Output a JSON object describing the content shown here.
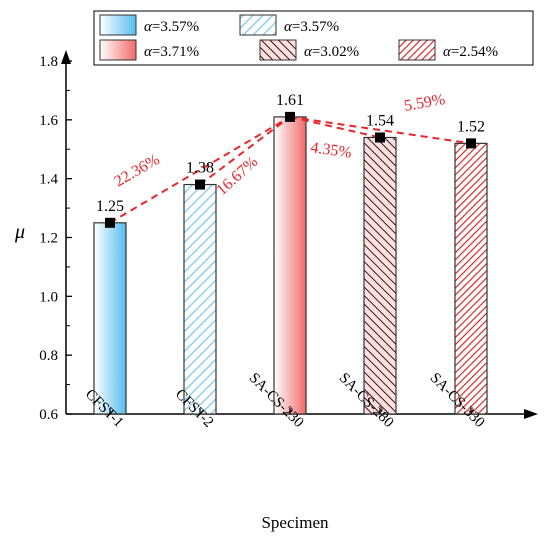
{
  "chart_data": {
    "type": "bar",
    "xlabel": "Specimen",
    "ylabel": "μ",
    "ylim": [
      0.6,
      1.8
    ],
    "yticks": [
      "0.6",
      "0.8",
      "1.0",
      "1.2",
      "1.4",
      "1.6",
      "1.8"
    ],
    "categories": [
      "CFST-1",
      "CFST-2",
      "SA-CS-230",
      "SA-CS-280",
      "SA-CS-330"
    ],
    "values": [
      1.25,
      1.38,
      1.61,
      1.54,
      1.52
    ],
    "value_labels": [
      "1.25",
      "1.38",
      "1.61",
      "1.54",
      "1.52"
    ],
    "styles": [
      "solid-blue",
      "hatch-blue",
      "solid-red",
      "hatch-red",
      "hatch-red-dense"
    ],
    "legend": {
      "placement": "top",
      "entries": [
        {
          "prefix": "α",
          "text": "=3.57%",
          "style": "solid-blue"
        },
        {
          "prefix": "α",
          "text": "=3.57%",
          "style": "hatch-blue"
        },
        {
          "prefix": "α",
          "text": "=3.71%",
          "style": "solid-red"
        },
        {
          "prefix": "α",
          "text": "=3.02%",
          "style": "hatch-red"
        },
        {
          "prefix": "α",
          "text": "=2.54%",
          "style": "hatch-red-dense"
        }
      ]
    },
    "annotations": [
      {
        "text": "22.36%",
        "from": "CFST-1",
        "to": "SA-CS-230"
      },
      {
        "text": "16.67%",
        "from": "CFST-2",
        "to": "SA-CS-230"
      },
      {
        "text": "4.35%",
        "from": "SA-CS-230",
        "to": "SA-CS-280"
      },
      {
        "text": "5.59%",
        "from": "SA-CS-230",
        "to": "SA-CS-330"
      }
    ],
    "colors": {
      "blue": "#55bdf0",
      "blue_light": "#d6effc",
      "blue_hatch": "#8fd0f3",
      "red": "#f26a6a",
      "red_light": "#fde1e1",
      "red_hatch": "#b82a2a",
      "red_hatch_dense": "#d42a2a",
      "trend": "#e8262b",
      "marker": "#000000"
    }
  }
}
